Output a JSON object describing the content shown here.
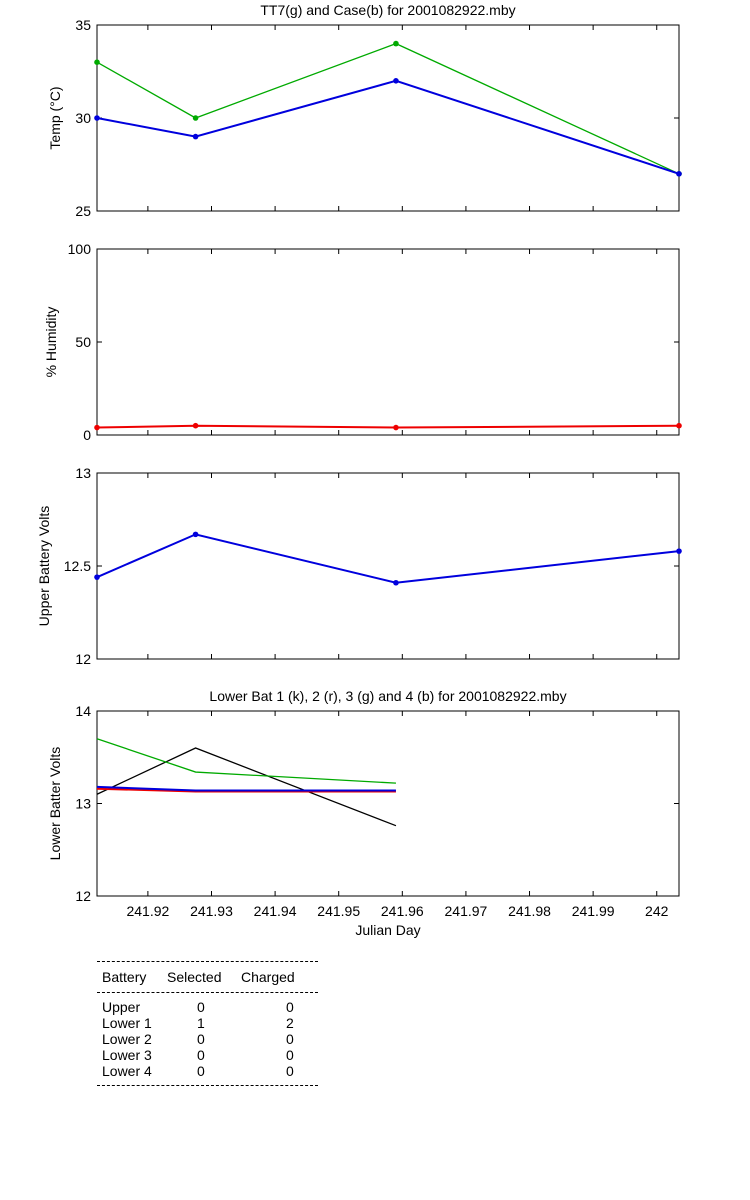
{
  "chart_data": [
    {
      "type": "line",
      "title": "TT7(g) and Case(b) for 2001082922.mby",
      "xlabel": "",
      "ylabel": "Temp  (°C)",
      "xlim": [
        241.912,
        242.0035
      ],
      "ylim": [
        25,
        35
      ],
      "yticks": [
        25,
        30,
        35
      ],
      "yticklabels": [
        "25",
        "30",
        "35"
      ],
      "grid": false,
      "series": [
        {
          "color": "#00aa00",
          "marker": true,
          "x": [
            241.912,
            241.9275,
            241.959,
            242.0035
          ],
          "y": [
            33,
            30,
            34,
            27
          ]
        },
        {
          "color": "#0000dd",
          "marker": true,
          "x": [
            241.912,
            241.9275,
            241.959,
            242.0035
          ],
          "y": [
            30,
            29,
            32,
            27
          ]
        }
      ]
    },
    {
      "type": "line",
      "title": "",
      "xlabel": "",
      "ylabel": "% Humidity",
      "xlim": [
        241.912,
        242.0035
      ],
      "ylim": [
        0,
        100
      ],
      "yticks": [
        0,
        50,
        100
      ],
      "yticklabels": [
        "0",
        "50",
        "100"
      ],
      "grid": false,
      "series": [
        {
          "color": "#ee0000",
          "marker": true,
          "x": [
            241.912,
            241.9275,
            241.959,
            242.0035
          ],
          "y": [
            4,
            5,
            4,
            5
          ]
        }
      ]
    },
    {
      "type": "line",
      "title": "",
      "xlabel": "",
      "ylabel": "Upper Battery Volts",
      "xlim": [
        241.912,
        242.0035
      ],
      "ylim": [
        12,
        13
      ],
      "yticks": [
        12,
        12.5,
        13
      ],
      "yticklabels": [
        "12",
        "12.5",
        "13"
      ],
      "grid": false,
      "series": [
        {
          "color": "#0000dd",
          "marker": true,
          "x": [
            241.912,
            241.9275,
            241.959,
            242.0035
          ],
          "y": [
            12.44,
            12.67,
            12.41,
            12.58
          ]
        }
      ]
    },
    {
      "type": "line",
      "title": "Lower Bat 1 (k), 2 (r), 3 (g) and 4 (b) for 2001082922.mby",
      "xlabel": "Julian Day",
      "ylabel": "Lower Batter Volts",
      "xlim": [
        241.912,
        242.0035
      ],
      "ylim": [
        12,
        14
      ],
      "yticks": [
        12,
        13,
        14
      ],
      "yticklabels": [
        "12",
        "13",
        "14"
      ],
      "xticks": [
        241.92,
        241.93,
        241.94,
        241.95,
        241.96,
        241.97,
        241.98,
        241.99,
        242
      ],
      "xticklabels": [
        "241.92",
        "241.93",
        "241.94",
        "241.95",
        "241.96",
        "241.97",
        "241.98",
        "241.99",
        "242"
      ],
      "grid": false,
      "series": [
        {
          "color": "#000000",
          "marker": false,
          "x": [
            241.912,
            241.9275,
            241.959
          ],
          "y": [
            13.1,
            13.6,
            12.76
          ]
        },
        {
          "color": "#ee0000",
          "marker": false,
          "x": [
            241.912,
            241.9275,
            241.959
          ],
          "y": [
            13.16,
            13.13,
            13.13
          ]
        },
        {
          "color": "#00aa00",
          "marker": false,
          "x": [
            241.912,
            241.9275,
            241.959
          ],
          "y": [
            13.7,
            13.34,
            13.22
          ]
        },
        {
          "color": "#0000dd",
          "marker": false,
          "x": [
            241.912,
            241.9275,
            241.959
          ],
          "y": [
            13.18,
            13.14,
            13.14
          ]
        }
      ]
    }
  ],
  "battery_table": {
    "headers": [
      "Battery",
      "Selected",
      "Charged"
    ],
    "rows": [
      {
        "battery": "Upper",
        "selected": "0",
        "charged": "0"
      },
      {
        "battery": "Lower 1",
        "selected": "1",
        "charged": "2"
      },
      {
        "battery": "Lower 2",
        "selected": "0",
        "charged": "0"
      },
      {
        "battery": "Lower 3",
        "selected": "0",
        "charged": "0"
      },
      {
        "battery": "Lower 4",
        "selected": "0",
        "charged": "0"
      }
    ]
  }
}
